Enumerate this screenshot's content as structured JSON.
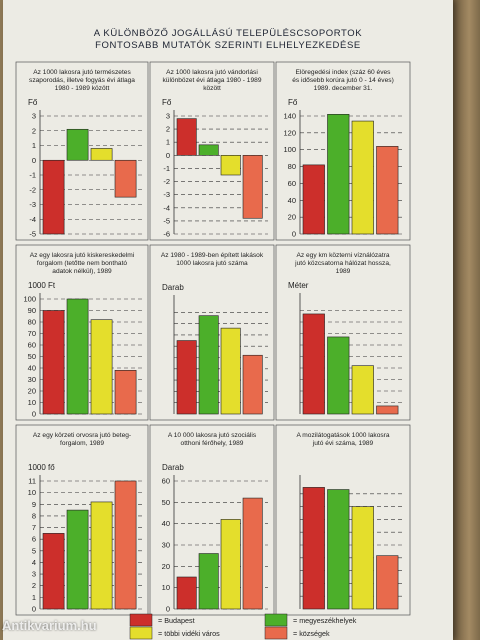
{
  "page": {
    "title_line1": "A KÜLÖNBÖZŐ JOGÁLLÁSÚ TELEPÜLÉSCSOPORTOK",
    "title_line2": "FONTOSABB MUTATÓK SZERINTI ELHELYEZKEDÉSE",
    "watermark": "Antikvarium.hu"
  },
  "colors": {
    "Budapest": "#cc2f2b",
    "megyeszékhelyek": "#4caf2a",
    "többi vidéki város": "#e4de2c",
    "községek": "#e86a4c"
  },
  "legend": [
    {
      "key": "Budapest",
      "label": "= Budapest"
    },
    {
      "key": "megyeszékhelyek",
      "label": "= megyeszékhelyek"
    },
    {
      "key": "többi vidéki város",
      "label": "= többi vidéki város"
    },
    {
      "key": "községek",
      "label": "= községek"
    }
  ],
  "chart_data": [
    {
      "type": "bar",
      "caption": [
        "Az 1000 lakosra jutó természetes",
        "szaporodás, illetve fogyás évi átlaga",
        "1980 - 1989 között"
      ],
      "unit": "Fő",
      "categories": [
        "Budapest",
        "megyeszékhelyek",
        "többi vidéki város",
        "községek"
      ],
      "values": [
        -5.0,
        2.1,
        0.8,
        -2.5
      ],
      "ylim": [
        -5,
        3
      ],
      "ticks": [
        3,
        2,
        1,
        0,
        -1,
        -2,
        -3,
        -4,
        -5
      ]
    },
    {
      "type": "bar",
      "caption": [
        "Az 1000 lakosra jutó vándorlási",
        "különbözet évi átlaga 1980 - 1989",
        "között"
      ],
      "unit": "Fő",
      "categories": [
        "Budapest",
        "megyeszékhelyek",
        "többi vidéki város",
        "községek"
      ],
      "values": [
        2.8,
        0.8,
        -1.5,
        -4.8
      ],
      "ylim": [
        -6,
        3
      ],
      "ticks": [
        3,
        2,
        1,
        0,
        -1,
        -2,
        -3,
        -4,
        -5,
        -6
      ]
    },
    {
      "type": "bar",
      "caption": [
        "Elöregedési index (száz 60 éves",
        "és idősebb korúra jutó 0 - 14 éves)",
        "1989. december 31."
      ],
      "unit": "Fő",
      "categories": [
        "Budapest",
        "megyeszékhelyek",
        "többi vidéki város",
        "községek"
      ],
      "values": [
        82,
        142,
        134,
        104
      ],
      "ylim": [
        0,
        140
      ],
      "ticks": [
        140,
        120,
        100,
        80,
        60,
        40,
        20,
        0
      ]
    },
    {
      "type": "bar",
      "caption": [
        "Az egy lakosra jutó kiskereskedelmi",
        "forgalom (tetőtte nem bontható",
        "adatok nélkül), 1989"
      ],
      "unit": "1000 Ft",
      "categories": [
        "Budapest",
        "megyeszékhelyek",
        "többi vidéki város",
        "községek"
      ],
      "values": [
        90,
        100,
        82,
        38
      ],
      "ylim": [
        0,
        100
      ],
      "ticks": [
        100,
        90,
        80,
        70,
        60,
        50,
        40,
        30,
        20,
        10,
        0
      ]
    },
    {
      "type": "bar",
      "caption": [
        "Az 1980 - 1989-ben épített lakások",
        "1000 lakosra jutó száma"
      ],
      "unit": "Darab",
      "categories": [
        "Budapest",
        "megyeszékhelyek",
        "többi vidéki város",
        "községek"
      ],
      "values": [
        65,
        87,
        76,
        52
      ],
      "ylim": [
        0,
        100
      ],
      "ticks": []
    },
    {
      "type": "bar",
      "caption": [
        "Az egy km közterni víználózatra",
        "jutó közcsatorna hálózat hossza,",
        "1989"
      ],
      "unit": "Méter",
      "categories": [
        "Budapest",
        "megyeszékhelyek",
        "többi vidéki város",
        "községek"
      ],
      "values": [
        870,
        670,
        420,
        70
      ],
      "ylim": [
        0,
        1000
      ],
      "ticks": []
    },
    {
      "type": "bar",
      "caption": [
        "Az egy körzeti orvosra jutó beteg-",
        "forgalom, 1989"
      ],
      "unit": "1000 fő",
      "categories": [
        "Budapest",
        "megyeszékhelyek",
        "többi vidéki város",
        "községek"
      ],
      "values": [
        6.5,
        8.5,
        9.2,
        11.0
      ],
      "ylim": [
        0,
        11
      ],
      "ticks": [
        11,
        10,
        9,
        8,
        7,
        6,
        5,
        4,
        3,
        2,
        1,
        0
      ]
    },
    {
      "type": "bar",
      "caption": [
        "A 10 000 lakosra jutó szociális",
        "otthoni férőhely, 1989"
      ],
      "unit": "Darab",
      "categories": [
        "Budapest",
        "megyeszékhelyek",
        "többi vidéki város",
        "községek"
      ],
      "values": [
        15,
        26,
        42,
        52
      ],
      "ylim": [
        0,
        60
      ],
      "ticks": [
        60,
        50,
        40,
        30,
        20,
        10,
        0
      ]
    },
    {
      "type": "bar",
      "caption": [
        "A mozilátogatások 1000 lakosra",
        "jutó évi száma, 1989"
      ],
      "unit": "",
      "categories": [
        "Budapest",
        "megyeszékhelyek",
        "többi vidéki város",
        "községek"
      ],
      "values": [
        5700,
        5600,
        4800,
        2500
      ],
      "ylim": [
        0,
        6000
      ],
      "ticks": []
    }
  ]
}
